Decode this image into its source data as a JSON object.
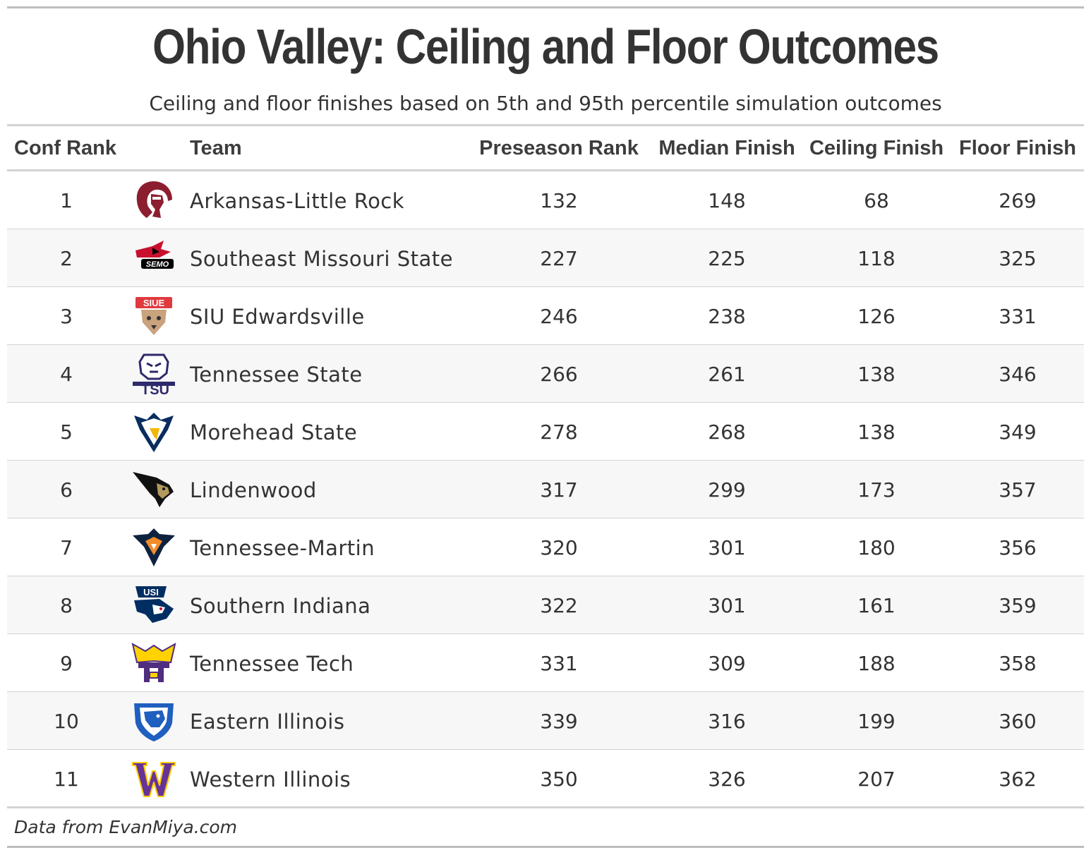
{
  "title": "Ohio Valley: Ceiling and Floor Outcomes",
  "subtitle": "Ceiling and floor finishes based on 5th and 95th percentile simulation outcomes",
  "source": "Data from EvanMiya.com",
  "columns": {
    "rank": "Conf Rank",
    "team": "Team",
    "preseason": "Preseason Rank",
    "median": "Median Finish",
    "ceiling": "Ceiling Finish",
    "floor": "Floor Finish"
  },
  "chart_data": {
    "type": "table",
    "title": "Ohio Valley: Ceiling and Floor Outcomes",
    "subtitle": "Ceiling and floor finishes based on 5th and 95th percentile simulation outcomes",
    "columns": [
      "Conf Rank",
      "Team",
      "Preseason Rank",
      "Median Finish",
      "Ceiling Finish",
      "Floor Finish"
    ],
    "rows": [
      {
        "rank": "1",
        "team": "Arkansas-Little Rock",
        "preseason": "132",
        "median": "148",
        "ceiling": "68",
        "floor": "269",
        "logo_icon": "little-rock-trojan-logo-icon",
        "logo_colors": [
          "#8b1e2f",
          "#ffffff"
        ]
      },
      {
        "rank": "2",
        "team": "Southeast Missouri State",
        "preseason": "227",
        "median": "225",
        "ceiling": "118",
        "floor": "325",
        "logo_icon": "semo-redhawk-logo-icon",
        "logo_colors": [
          "#c8102e",
          "#000000"
        ]
      },
      {
        "rank": "3",
        "team": "SIU Edwardsville",
        "preseason": "246",
        "median": "238",
        "ceiling": "126",
        "floor": "331",
        "logo_icon": "siue-cougar-logo-icon",
        "logo_colors": [
          "#e03a3e",
          "#c9a27e"
        ]
      },
      {
        "rank": "4",
        "team": "Tennessee State",
        "preseason": "266",
        "median": "261",
        "ceiling": "138",
        "floor": "346",
        "logo_icon": "tsu-tiger-logo-icon",
        "logo_colors": [
          "#2e2a6b",
          "#ffffff"
        ]
      },
      {
        "rank": "5",
        "team": "Morehead State",
        "preseason": "278",
        "median": "268",
        "ceiling": "138",
        "floor": "349",
        "logo_icon": "morehead-eagle-logo-icon",
        "logo_colors": [
          "#0a2c5e",
          "#f2b705"
        ]
      },
      {
        "rank": "6",
        "team": "Lindenwood",
        "preseason": "317",
        "median": "299",
        "ceiling": "173",
        "floor": "357",
        "logo_icon": "lindenwood-lion-logo-icon",
        "logo_colors": [
          "#111111",
          "#b3995d"
        ]
      },
      {
        "rank": "7",
        "team": "Tennessee-Martin",
        "preseason": "320",
        "median": "301",
        "ceiling": "180",
        "floor": "356",
        "logo_icon": "ut-martin-skyhawk-logo-icon",
        "logo_colors": [
          "#0e2240",
          "#f28c28"
        ]
      },
      {
        "rank": "8",
        "team": "Southern Indiana",
        "preseason": "322",
        "median": "301",
        "ceiling": "161",
        "floor": "359",
        "logo_icon": "usi-screaming-eagle-logo-icon",
        "logo_colors": [
          "#002d62",
          "#c8102e"
        ]
      },
      {
        "rank": "9",
        "team": "Tennessee Tech",
        "preseason": "331",
        "median": "309",
        "ceiling": "188",
        "floor": "358",
        "logo_icon": "tennessee-tech-logo-icon",
        "logo_colors": [
          "#4f2d7f",
          "#ffd200"
        ]
      },
      {
        "rank": "10",
        "team": "Eastern Illinois",
        "preseason": "339",
        "median": "316",
        "ceiling": "199",
        "floor": "360",
        "logo_icon": "eastern-illinois-panther-logo-icon",
        "logo_colors": [
          "#1f5fbf",
          "#ffffff"
        ]
      },
      {
        "rank": "11",
        "team": "Western Illinois",
        "preseason": "350",
        "median": "326",
        "ceiling": "207",
        "floor": "362",
        "logo_icon": "western-illinois-w-logo-icon",
        "logo_colors": [
          "#663399",
          "#ffcc00"
        ]
      }
    ]
  }
}
